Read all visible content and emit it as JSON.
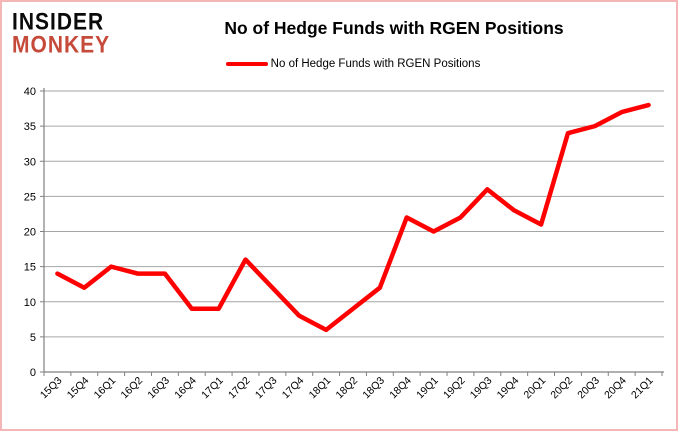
{
  "logo": {
    "line1": "INSIDER",
    "line2": "MONKEY"
  },
  "title": "No of Hedge Funds with RGEN Positions",
  "legend": {
    "label": "No of Hedge Funds with RGEN Positions"
  },
  "colors": {
    "line": "#ff0000",
    "grid": "#a6a6a6",
    "axis": "#808080",
    "text": "#000000",
    "logo_red": "#c64a3a",
    "border_pink": "#f4b6b6"
  },
  "chart_data": {
    "type": "line",
    "title": "No of Hedge Funds with RGEN Positions",
    "categories": [
      "15Q3",
      "15Q4",
      "16Q1",
      "16Q2",
      "16Q3",
      "16Q4",
      "17Q1",
      "17Q2",
      "17Q3",
      "17Q4",
      "18Q1",
      "18Q2",
      "18Q3",
      "18Q4",
      "19Q1",
      "19Q2",
      "19Q3",
      "19Q4",
      "20Q1",
      "20Q2",
      "20Q3",
      "20Q4",
      "21Q1"
    ],
    "series": [
      {
        "name": "No of Hedge Funds with RGEN Positions",
        "color": "#ff0000",
        "values": [
          14,
          12,
          15,
          14,
          14,
          9,
          9,
          16,
          12,
          8,
          6,
          9,
          12,
          22,
          20,
          22,
          26,
          23,
          21,
          34,
          35,
          37,
          38
        ]
      }
    ],
    "xlabel": "",
    "ylabel": "",
    "ylim": [
      0,
      40
    ],
    "yticks": [
      0,
      5,
      10,
      15,
      20,
      25,
      30,
      35,
      40
    ],
    "grid": true,
    "legend_position": "top"
  }
}
